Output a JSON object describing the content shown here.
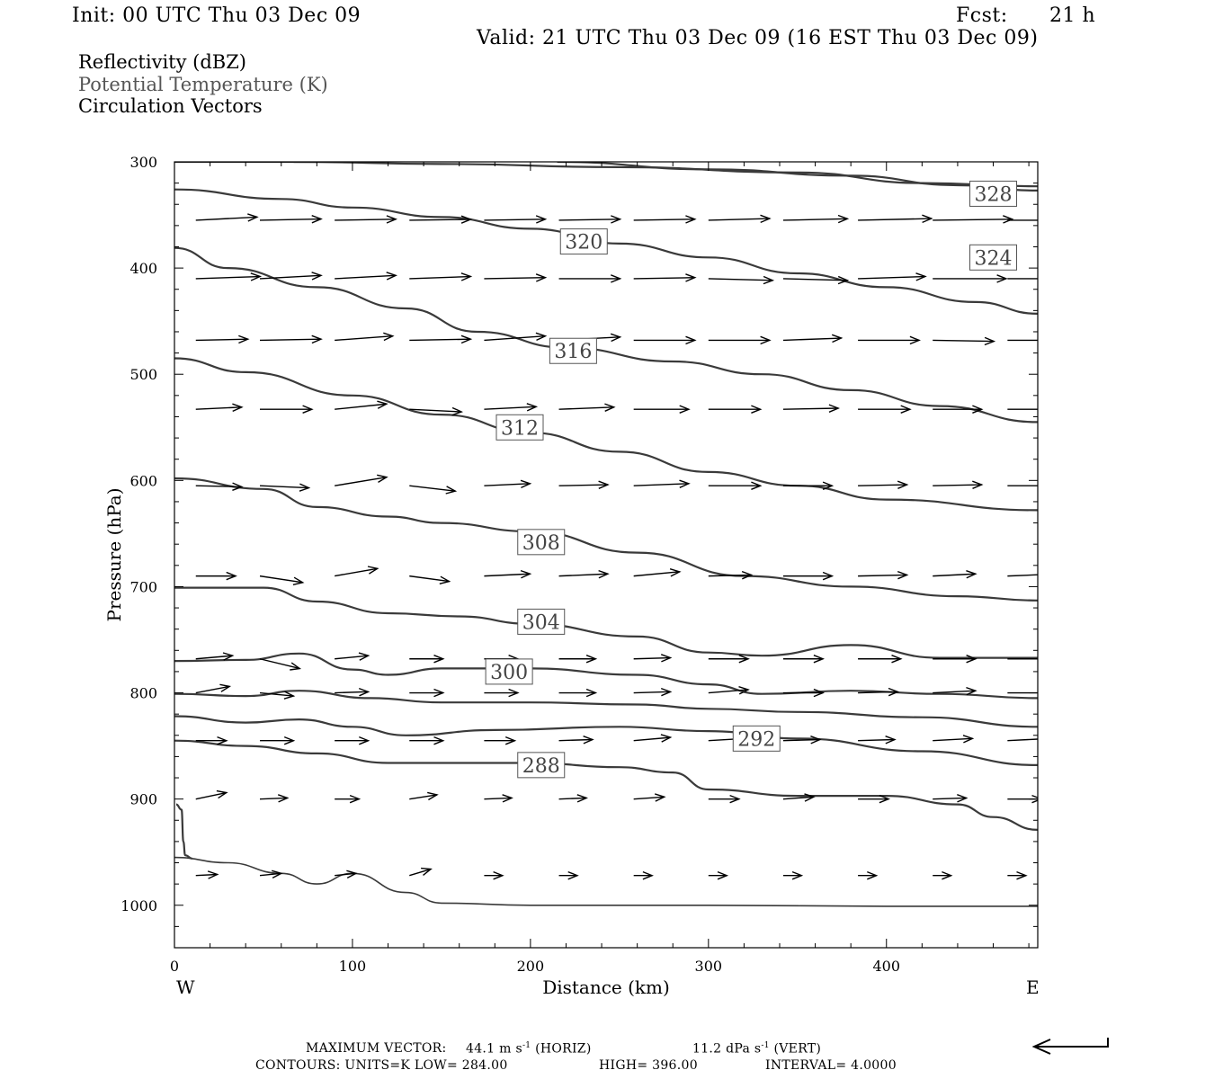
{
  "header": {
    "init": "Init: 00 UTC Thu 03 Dec 09",
    "fcst_label": "Fcst:",
    "fcst_value": "21 h",
    "valid": "Valid: 21 UTC Thu 03 Dec 09 (16 EST Thu 03 Dec 09)"
  },
  "fields": {
    "reflectivity": "Reflectivity (dBZ)",
    "theta": "Potential Temperature (K)",
    "vectors": "Circulation Vectors"
  },
  "colors": {
    "contour": "#3a3a3a",
    "vector": "#000000",
    "label_border": "#555555",
    "legend_grey": "#555555"
  },
  "chart_data": {
    "type": "cross-section",
    "xlabel": "Distance (km)",
    "ylabel": "Pressure (hPa)",
    "xlim": [
      0,
      485
    ],
    "ylim": [
      300,
      1040
    ],
    "y_inverted": true,
    "x_ticks": [
      0,
      100,
      200,
      300,
      400
    ],
    "y_ticks": [
      300,
      400,
      500,
      600,
      700,
      800,
      900,
      1000
    ],
    "left_end_label": "W",
    "right_end_label": "E",
    "contour_units": "K",
    "isentropes": [
      {
        "level": null,
        "label": null,
        "points": [
          [
            67,
            300
          ],
          [
            150,
            302
          ],
          [
            250,
            305
          ],
          [
            350,
            310
          ],
          [
            420,
            320
          ],
          [
            485,
            323
          ]
        ]
      },
      {
        "level": null,
        "label": null,
        "points": [
          [
            0,
            300
          ],
          [
            40,
            300
          ],
          [
            80,
            300
          ]
        ]
      },
      {
        "level": 328,
        "label": "328",
        "points": [
          [
            215,
            300
          ],
          [
            300,
            307
          ],
          [
            380,
            313
          ],
          [
            440,
            322
          ],
          [
            485,
            327
          ]
        ]
      },
      {
        "level": 324,
        "label": "324",
        "points": [
          [
            0,
            326
          ],
          [
            60,
            335
          ],
          [
            100,
            343
          ],
          [
            150,
            352
          ],
          [
            200,
            363
          ],
          [
            250,
            377
          ],
          [
            300,
            390
          ],
          [
            350,
            405
          ],
          [
            400,
            418
          ],
          [
            450,
            432
          ],
          [
            485,
            443
          ]
        ]
      },
      {
        "level": 320,
        "label": "320",
        "points": [
          [
            0,
            381
          ],
          [
            30,
            400
          ],
          [
            80,
            418
          ],
          [
            130,
            438
          ],
          [
            170,
            460
          ],
          [
            220,
            475
          ],
          [
            280,
            488
          ],
          [
            330,
            500
          ],
          [
            380,
            515
          ],
          [
            430,
            530
          ],
          [
            485,
            545
          ]
        ]
      },
      {
        "level": 316,
        "label": "316",
        "points": [
          [
            0,
            485
          ],
          [
            40,
            498
          ],
          [
            100,
            520
          ],
          [
            150,
            538
          ],
          [
            200,
            555
          ],
          [
            250,
            573
          ],
          [
            300,
            592
          ],
          [
            350,
            605
          ],
          [
            400,
            618
          ],
          [
            485,
            628
          ]
        ]
      },
      {
        "level": 312,
        "label": "312",
        "points": [
          [
            0,
            598
          ],
          [
            50,
            608
          ],
          [
            80,
            625
          ],
          [
            120,
            634
          ],
          [
            150,
            640
          ],
          [
            200,
            648
          ],
          [
            260,
            668
          ],
          [
            320,
            690
          ],
          [
            380,
            700
          ],
          [
            440,
            709
          ],
          [
            485,
            713
          ]
        ]
      },
      {
        "level": 308,
        "label": "308",
        "points": [
          [
            0,
            701
          ],
          [
            50,
            701
          ],
          [
            80,
            714
          ],
          [
            120,
            725
          ],
          [
            160,
            728
          ],
          [
            200,
            735
          ],
          [
            260,
            747
          ],
          [
            300,
            762
          ],
          [
            330,
            765
          ],
          [
            380,
            755
          ],
          [
            430,
            767
          ],
          [
            485,
            767
          ]
        ]
      },
      {
        "level": 304,
        "label": "304",
        "points": [
          [
            0,
            770
          ],
          [
            40,
            769
          ],
          [
            70,
            763
          ],
          [
            100,
            778
          ],
          [
            120,
            783
          ],
          [
            150,
            777
          ],
          [
            200,
            777
          ],
          [
            260,
            783
          ],
          [
            300,
            792
          ],
          [
            330,
            801
          ],
          [
            380,
            798
          ],
          [
            430,
            801
          ],
          [
            485,
            805
          ]
        ]
      },
      {
        "level": 300,
        "label": "300",
        "points": [
          [
            0,
            801
          ],
          [
            40,
            803
          ],
          [
            70,
            798
          ],
          [
            110,
            805
          ],
          [
            150,
            809
          ],
          [
            200,
            809
          ],
          [
            260,
            811
          ],
          [
            300,
            815
          ],
          [
            350,
            818
          ],
          [
            420,
            823
          ],
          [
            485,
            832
          ]
        ]
      },
      {
        "level": 296,
        "label": null,
        "points": [
          [
            0,
            822
          ],
          [
            40,
            828
          ],
          [
            70,
            825
          ],
          [
            100,
            832
          ],
          [
            130,
            840
          ],
          [
            180,
            835
          ],
          [
            250,
            832
          ],
          [
            300,
            836
          ],
          [
            350,
            843
          ],
          [
            420,
            855
          ],
          [
            485,
            868
          ]
        ]
      },
      {
        "level": 292,
        "label": "292",
        "points": [
          [
            0,
            845
          ],
          [
            40,
            850
          ],
          [
            80,
            857
          ],
          [
            120,
            866
          ],
          [
            160,
            866
          ],
          [
            200,
            866
          ],
          [
            250,
            870
          ],
          [
            280,
            875
          ],
          [
            300,
            891
          ],
          [
            350,
            897
          ],
          [
            400,
            897
          ],
          [
            440,
            905
          ],
          [
            460,
            917
          ],
          [
            485,
            929
          ]
        ]
      },
      {
        "level": 288,
        "label": "288",
        "points": [
          [
            0,
            955
          ],
          [
            30,
            960
          ],
          [
            60,
            970
          ],
          [
            80,
            980
          ],
          [
            100,
            970
          ],
          [
            130,
            988
          ],
          [
            150,
            998
          ],
          [
            200,
            1000
          ],
          [
            300,
            1000
          ],
          [
            400,
            1001
          ],
          [
            485,
            1001
          ]
        ]
      },
      {
        "level": 284,
        "label": null,
        "points": [
          [
            1,
            905
          ],
          [
            4,
            910
          ],
          [
            5,
            940
          ],
          [
            6,
            953
          ],
          [
            10,
            956
          ]
        ]
      }
    ],
    "isentrope_label_positions": [
      {
        "label": "328",
        "x": 460,
        "p": 330
      },
      {
        "label": "324",
        "x": 460,
        "p": 390
      },
      {
        "label": "320",
        "x": 230,
        "p": 375
      },
      {
        "label": "316",
        "x": 224,
        "p": 478
      },
      {
        "label": "312",
        "x": 194,
        "p": 550
      },
      {
        "label": "308",
        "x": 206,
        "p": 658
      },
      {
        "label": "304",
        "x": 206,
        "p": 733
      },
      {
        "label": "300",
        "x": 188,
        "p": 780
      },
      {
        "label": "292",
        "x": 327,
        "p": 843
      },
      {
        "label": "288",
        "x": 206,
        "p": 868
      }
    ],
    "vector_rows": [
      {
        "p": 355,
        "u": [
          1.0,
          1.0,
          1.0,
          1.0,
          1.0,
          1.0,
          1.0,
          1.0,
          1.05,
          1.2,
          1.3,
          1.35
        ],
        "w": [
          0.15,
          0.06,
          0.05,
          0.04,
          0.05,
          0.05,
          0.05,
          0.08,
          0.07,
          0.08,
          0.05,
          0.0
        ]
      },
      {
        "p": 410,
        "u": [
          1.05,
          1.0,
          1.0,
          1.0,
          1.0,
          1.0,
          1.0,
          1.05,
          1.05,
          1.1,
          1.2,
          1.25
        ],
        "w": [
          0.1,
          0.15,
          0.15,
          0.1,
          0.05,
          0.0,
          0.05,
          -0.08,
          -0.08,
          0.1,
          0.0,
          0.0
        ]
      },
      {
        "p": 468,
        "u": [
          0.85,
          1.0,
          0.95,
          1.0,
          1.0,
          1.0,
          1.0,
          1.0,
          0.95,
          1.0,
          1.0,
          1.0
        ],
        "w": [
          0.05,
          0.05,
          0.2,
          0.05,
          0.2,
          0.15,
          0.0,
          0.0,
          0.1,
          0.0,
          -0.05,
          0.0
        ]
      },
      {
        "p": 533,
        "u": [
          0.75,
          0.85,
          0.85,
          0.85,
          0.85,
          0.9,
          0.9,
          0.85,
          0.9,
          0.85,
          0.8,
          0.85
        ],
        "w": [
          0.1,
          0.0,
          0.25,
          -0.12,
          0.12,
          0.1,
          0.0,
          0.0,
          0.05,
          0.0,
          0.0,
          0.0
        ]
      },
      {
        "p": 605,
        "u": [
          0.75,
          0.8,
          0.85,
          0.75,
          0.75,
          0.8,
          0.9,
          0.85,
          0.8,
          0.8,
          0.8,
          0.85
        ],
        "w": [
          -0.05,
          -0.1,
          0.4,
          -0.25,
          0.1,
          0.05,
          0.1,
          0.0,
          0.0,
          0.05,
          0.05,
          0.0
        ]
      },
      {
        "p": 690,
        "u": [
          0.65,
          0.7,
          0.7,
          0.65,
          0.75,
          0.8,
          0.75,
          0.7,
          0.8,
          0.8,
          0.7,
          0.85
        ],
        "w": [
          0.0,
          -0.3,
          0.35,
          -0.25,
          0.1,
          0.1,
          0.2,
          0.05,
          0.0,
          0.05,
          0.1,
          0.1
        ]
      },
      {
        "p": 768,
        "u": [
          0.6,
          0.65,
          0.55,
          0.55,
          0.55,
          0.6,
          0.6,
          0.65,
          0.65,
          0.7,
          0.7,
          0.8
        ],
        "w": [
          0.15,
          -0.45,
          0.15,
          0.0,
          0.0,
          0.0,
          0.05,
          0.0,
          0.0,
          0.0,
          0.0,
          0.0
        ]
      },
      {
        "p": 800,
        "u": [
          0.55,
          0.55,
          0.55,
          0.55,
          0.55,
          0.6,
          0.6,
          0.65,
          0.65,
          0.65,
          0.7,
          0.75
        ],
        "w": [
          0.3,
          -0.15,
          0.05,
          0.0,
          0.0,
          0.0,
          0.05,
          0.15,
          0.0,
          0.05,
          0.1,
          0.0
        ]
      },
      {
        "p": 845,
        "u": [
          0.5,
          0.55,
          0.55,
          0.55,
          0.5,
          0.55,
          0.6,
          0.6,
          0.6,
          0.6,
          0.65,
          0.7
        ],
        "w": [
          0.0,
          0.0,
          0.0,
          0.0,
          0.0,
          0.05,
          0.15,
          0.1,
          0.05,
          0.05,
          0.1,
          0.1
        ]
      },
      {
        "p": 900,
        "u": [
          0.5,
          0.45,
          0.4,
          0.45,
          0.45,
          0.45,
          0.5,
          0.5,
          0.5,
          0.5,
          0.55,
          0.55
        ],
        "w": [
          0.3,
          0.05,
          0.0,
          0.2,
          0.05,
          0.05,
          0.1,
          0.0,
          0.1,
          0.0,
          0.05,
          0.0
        ]
      },
      {
        "p": 972,
        "u": [
          0.35,
          0.35,
          0.35,
          0.35,
          0.3,
          0.3,
          0.3,
          0.3,
          0.3,
          0.3,
          0.3,
          0.3
        ],
        "w": [
          0.05,
          0.1,
          0.1,
          0.3,
          0.0,
          0.0,
          0.0,
          0.0,
          0.0,
          0.0,
          0.0,
          0.0
        ]
      }
    ],
    "vector_x": [
      12,
      48,
      90,
      132,
      174,
      216,
      258,
      300,
      342,
      384,
      426,
      468
    ]
  },
  "footer": {
    "max_vector_label": "MAXIMUM VECTOR:",
    "horiz_value": "44.1 m s",
    "horiz_exp": "-1",
    "horiz_tag": "(HORIZ)",
    "vert_value": "11.2 dPa s",
    "vert_exp": "-1",
    "vert_tag": "(VERT)",
    "contours": "CONTOURS:  UNITS=K  LOW=  284.00",
    "high": "HIGH=  396.00",
    "interval": "INTERVAL=   4.0000"
  }
}
